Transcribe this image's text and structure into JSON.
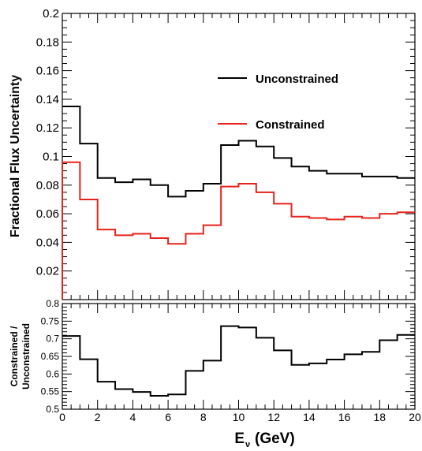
{
  "chart_data": [
    {
      "type": "line",
      "step": true,
      "xlabel_main": "E",
      "xlabel_sub": "ν",
      "xlabel_unit": "(GeV)",
      "ylabel": "Fractional Flux Uncertainty",
      "xlim": [
        0,
        20
      ],
      "ylim": [
        0.0,
        0.2
      ],
      "x_ticks": [
        0,
        2,
        4,
        6,
        8,
        10,
        12,
        14,
        16,
        18,
        20
      ],
      "y_ticks": [
        0.02,
        0.04,
        0.06,
        0.08,
        0.1,
        0.12,
        0.14,
        0.16,
        0.18,
        0.2
      ],
      "y_tick_labels": [
        "0.02",
        "0.04",
        "0.06",
        "0.08",
        "0.1",
        "0.12",
        "0.14",
        "0.16",
        "0.18",
        "0.2"
      ],
      "bin_edges": [
        0,
        1,
        2,
        3,
        4,
        5,
        6,
        7,
        8,
        9,
        10,
        11,
        12,
        13,
        14,
        15,
        16,
        17,
        18,
        19,
        20
      ],
      "series": [
        {
          "name": "Unconstrained",
          "color": "#000000",
          "values": [
            0.135,
            0.109,
            0.085,
            0.082,
            0.084,
            0.08,
            0.072,
            0.076,
            0.081,
            0.108,
            0.111,
            0.107,
            0.099,
            0.093,
            0.09,
            0.088,
            0.088,
            0.086,
            0.086,
            0.085
          ]
        },
        {
          "name": "Constrained",
          "color": "#e8231c",
          "values": [
            0.096,
            0.07,
            0.049,
            0.045,
            0.046,
            0.043,
            0.039,
            0.046,
            0.052,
            0.079,
            0.081,
            0.075,
            0.067,
            0.058,
            0.057,
            0.056,
            0.058,
            0.057,
            0.06,
            0.061
          ]
        }
      ],
      "legend_position": "right"
    },
    {
      "type": "line",
      "step": true,
      "ylabel_line1": "Constrained /",
      "ylabel_line2": "Unconstrained",
      "xlim": [
        0,
        20
      ],
      "ylim": [
        0.5,
        0.8
      ],
      "x_ticks": [
        0,
        2,
        4,
        6,
        8,
        10,
        12,
        14,
        16,
        18,
        20
      ],
      "x_tick_labels": [
        "0",
        "2",
        "4",
        "6",
        "8",
        "10",
        "12",
        "14",
        "16",
        "18",
        "20"
      ],
      "y_ticks": [
        0.5,
        0.55,
        0.6,
        0.65,
        0.7,
        0.75,
        0.8
      ],
      "y_tick_labels": [
        "0.5",
        "0.55",
        "0.6",
        "0.65",
        "0.7",
        "0.75",
        "0.8"
      ],
      "bin_edges": [
        0,
        1,
        2,
        3,
        4,
        5,
        6,
        7,
        8,
        9,
        10,
        11,
        12,
        13,
        14,
        15,
        16,
        17,
        18,
        19,
        20
      ],
      "series": [
        {
          "color": "#000000",
          "values": [
            0.708,
            0.642,
            0.578,
            0.557,
            0.549,
            0.538,
            0.542,
            0.609,
            0.638,
            0.736,
            0.732,
            0.703,
            0.667,
            0.626,
            0.63,
            0.641,
            0.656,
            0.663,
            0.696,
            0.711
          ]
        }
      ]
    }
  ]
}
